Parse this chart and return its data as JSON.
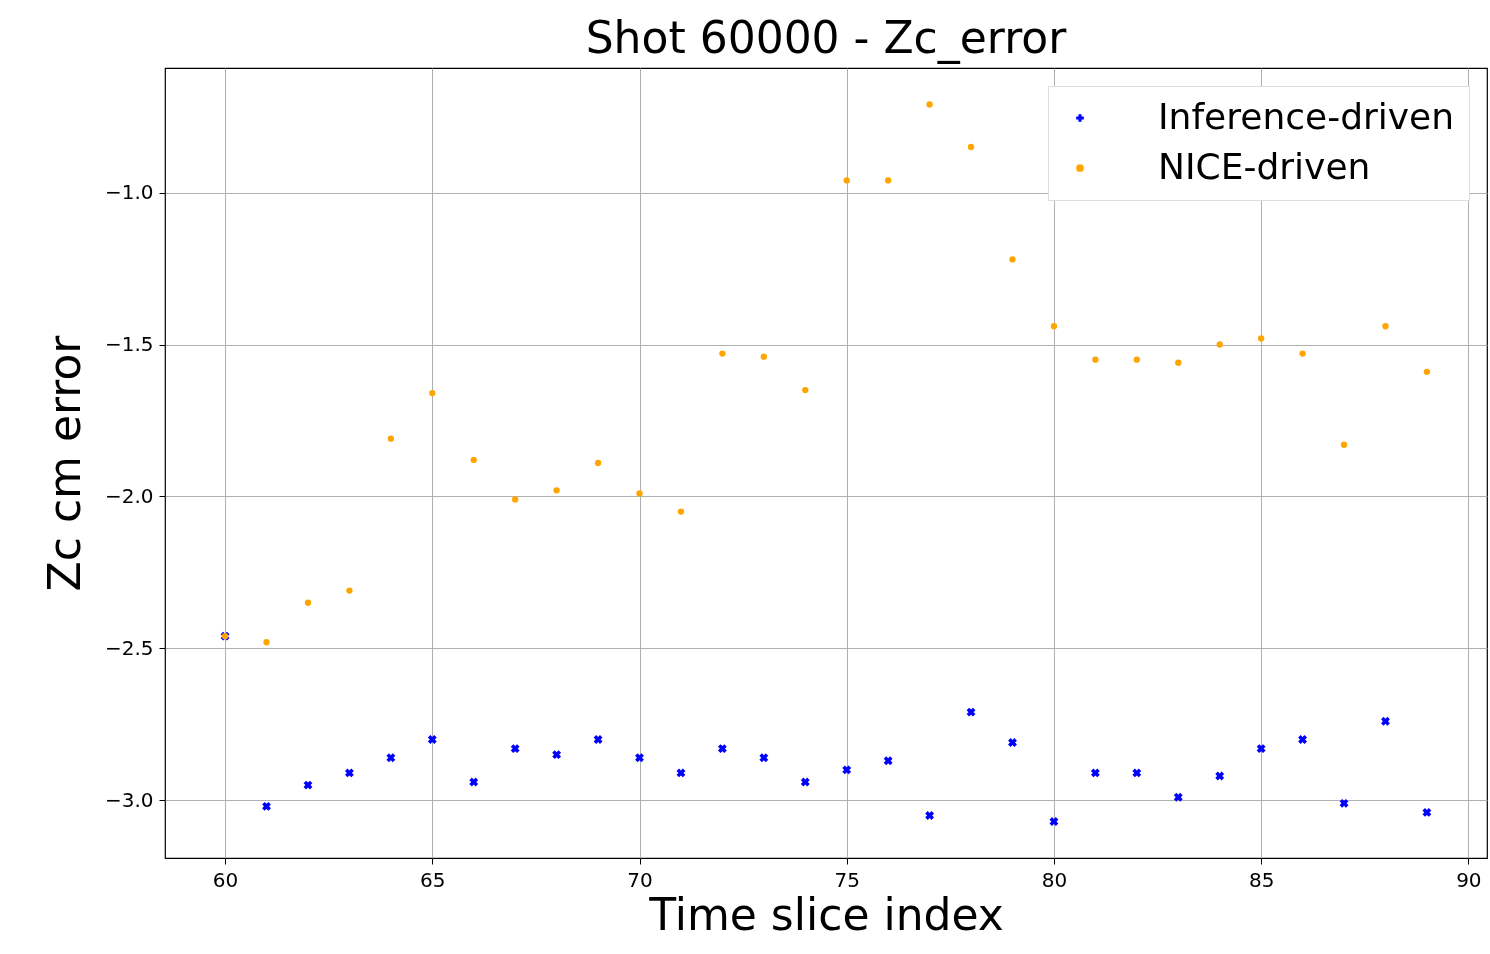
{
  "chart_data": {
    "type": "scatter",
    "title": "Shot 60000 - Zc_error",
    "xlabel": "Time slice index",
    "ylabel": "Zc cm error",
    "x": [
      60,
      61,
      62,
      63,
      64,
      65,
      66,
      67,
      68,
      69,
      70,
      71,
      72,
      73,
      74,
      75,
      76,
      77,
      78,
      79,
      80,
      81,
      82,
      83,
      84,
      85,
      86,
      87,
      88,
      89
    ],
    "series": [
      {
        "name": "Inference-driven",
        "color": "#0000ff",
        "marker": "cross",
        "values": [
          -2.46,
          -3.02,
          -2.95,
          -2.91,
          -2.86,
          -2.8,
          -2.94,
          -2.83,
          -2.85,
          -2.8,
          -2.86,
          -2.91,
          -2.83,
          -2.86,
          -2.94,
          -2.9,
          -2.87,
          -3.05,
          -2.71,
          -2.81,
          -3.07,
          -2.91,
          -2.91,
          -2.99,
          -2.92,
          -2.83,
          -2.8,
          -3.01,
          -2.74,
          -3.04
        ]
      },
      {
        "name": "NICE-driven",
        "color": "#ffa500",
        "marker": "circle",
        "values": [
          -2.46,
          -2.48,
          -2.35,
          -2.31,
          -1.81,
          -1.66,
          -1.88,
          -2.01,
          -1.98,
          -1.89,
          -1.99,
          -2.05,
          -1.53,
          -1.54,
          -1.65,
          -0.96,
          -0.96,
          -0.71,
          -0.85,
          -1.22,
          -1.44,
          -1.55,
          -1.55,
          -1.56,
          -1.5,
          -1.48,
          -1.53,
          -1.83,
          -1.44,
          -1.59
        ]
      }
    ],
    "xlim": [
      58.55,
      90.45
    ],
    "ylim": [
      -3.19,
      -0.59
    ],
    "xticks": [
      60,
      65,
      70,
      75,
      80,
      85,
      90
    ],
    "yticks": [
      {
        "value": -3,
        "label": "−3.0"
      },
      {
        "value": -2.5,
        "label": "−2.5"
      },
      {
        "value": -2,
        "label": "−2.0"
      },
      {
        "value": -1.5,
        "label": "−1.5"
      },
      {
        "value": -1,
        "label": "−1.0"
      }
    ],
    "grid": true,
    "legend": "top right"
  }
}
